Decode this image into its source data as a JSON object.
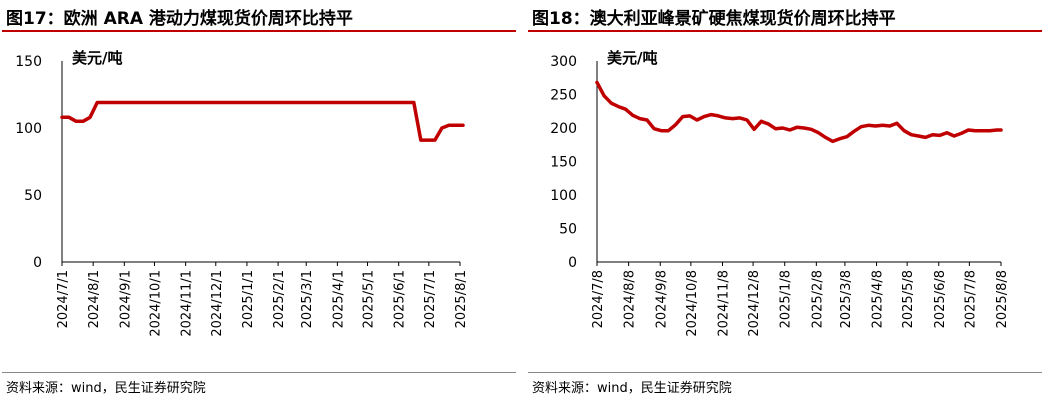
{
  "chart_data": [
    {
      "type": "line",
      "title": "图17：欧洲 ARA 港动力煤现货价周环比持平",
      "ylabel": "美元/吨",
      "xlabel": "",
      "ylim": [
        0,
        150
      ],
      "yticks": [
        "0",
        "50",
        "100",
        "150"
      ],
      "xticks": [
        "2024/7/1",
        "2024/8/1",
        "2024/9/1",
        "2024/10/1",
        "2024/11/1",
        "2024/12/1",
        "2025/1/1",
        "2025/2/1",
        "2025/3/1",
        "2025/4/1",
        "2025/5/1",
        "2025/6/1",
        "2025/7/1",
        "2025/8/1"
      ],
      "grid": false,
      "color": "#c00000",
      "source": "资料来源：wind，民生证券研究院",
      "series": [
        {
          "x": [
            "2024/7/1",
            "2024/7/8",
            "2024/7/15",
            "2024/7/22",
            "2024/7/29",
            "2024/8/5",
            "2024/8/12",
            "2024/9/1",
            "2024/10/1",
            "2024/11/1",
            "2024/12/1",
            "2025/1/1",
            "2025/2/1",
            "2025/3/1",
            "2025/4/1",
            "2025/5/1",
            "2025/6/1",
            "2025/6/16",
            "2025/6/23",
            "2025/6/30",
            "2025/7/7",
            "2025/7/14",
            "2025/7/21",
            "2025/7/28",
            "2025/8/4"
          ],
          "values": [
            108,
            108,
            105,
            105,
            108,
            119,
            119,
            119,
            119,
            119,
            119,
            119,
            119,
            119,
            119,
            119,
            119,
            119,
            91,
            91,
            91,
            100,
            102,
            102,
            102
          ]
        }
      ]
    },
    {
      "type": "line",
      "title": "图18：澳大利亚峰景矿硬焦煤现货价周环比持平",
      "ylabel": "美元/吨",
      "xlabel": "",
      "ylim": [
        0,
        300
      ],
      "yticks": [
        "0",
        "50",
        "100",
        "150",
        "200",
        "250",
        "300"
      ],
      "xticks": [
        "2024/7/8",
        "2024/8/8",
        "2024/9/8",
        "2024/10/8",
        "2024/11/8",
        "2024/12/8",
        "2025/1/8",
        "2025/2/8",
        "2025/3/8",
        "2025/4/8",
        "2025/5/8",
        "2025/6/8",
        "2025/7/8",
        "2025/8/8"
      ],
      "grid": false,
      "color": "#c00000",
      "source": "资料来源：wind，民生证券研究院",
      "series": [
        {
          "x": [
            "2024/7/8",
            "2024/7/15",
            "2024/7/22",
            "2024/7/29",
            "2024/8/5",
            "2024/8/12",
            "2024/8/19",
            "2024/8/26",
            "2024/9/2",
            "2024/9/9",
            "2024/9/16",
            "2024/9/23",
            "2024/9/30",
            "2024/10/7",
            "2024/10/14",
            "2024/10/21",
            "2024/10/28",
            "2024/11/4",
            "2024/11/11",
            "2024/11/18",
            "2024/11/25",
            "2024/12/2",
            "2024/12/9",
            "2024/12/16",
            "2024/12/23",
            "2024/12/30",
            "2025/1/6",
            "2025/1/13",
            "2025/1/20",
            "2025/1/27",
            "2025/2/3",
            "2025/2/10",
            "2025/2/17",
            "2025/2/24",
            "2025/3/3",
            "2025/3/10",
            "2025/3/17",
            "2025/3/24",
            "2025/3/31",
            "2025/4/7",
            "2025/4/14",
            "2025/4/21",
            "2025/4/28",
            "2025/5/5",
            "2025/5/12",
            "2025/5/19",
            "2025/5/26",
            "2025/6/2",
            "2025/6/9",
            "2025/6/16",
            "2025/6/23",
            "2025/6/30",
            "2025/7/7",
            "2025/7/14",
            "2025/7/21",
            "2025/7/28",
            "2025/8/4",
            "2025/8/8"
          ],
          "values": [
            268,
            248,
            237,
            232,
            228,
            219,
            214,
            212,
            199,
            196,
            196,
            205,
            217,
            218,
            212,
            217,
            220,
            218,
            215,
            214,
            215,
            212,
            198,
            210,
            206,
            199,
            200,
            197,
            201,
            200,
            198,
            193,
            186,
            180,
            184,
            187,
            195,
            202,
            204,
            203,
            204,
            203,
            207,
            196,
            190,
            188,
            186,
            190,
            189,
            193,
            188,
            192,
            197,
            196,
            196,
            196,
            197,
            197
          ]
        }
      ]
    }
  ]
}
